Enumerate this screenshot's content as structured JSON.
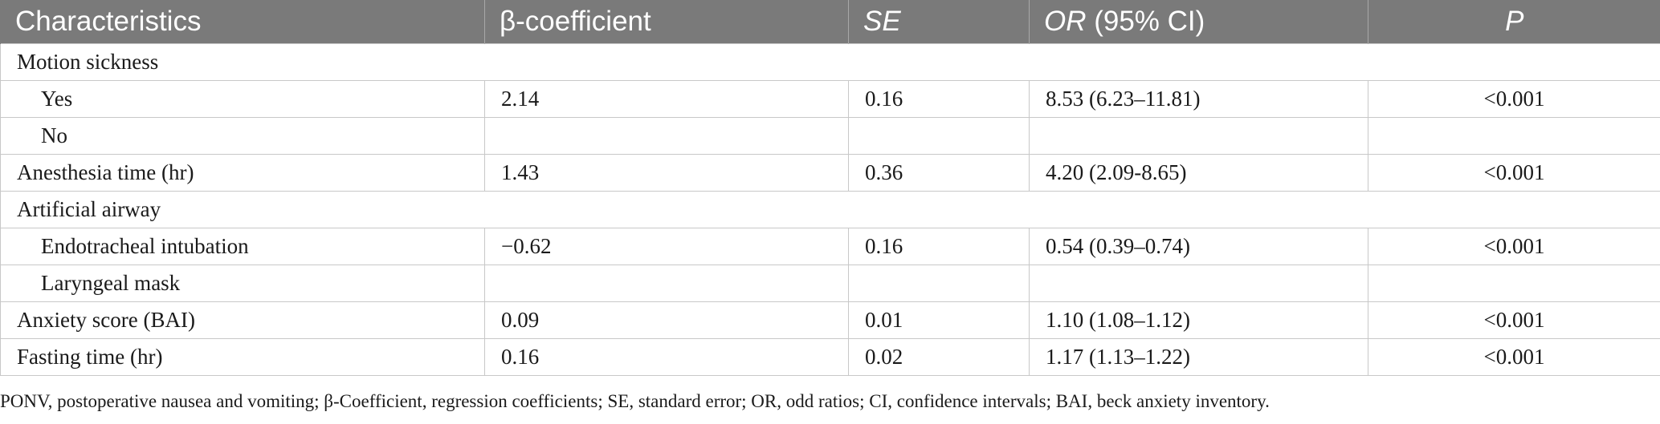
{
  "table": {
    "headers": {
      "characteristics": "Characteristics",
      "beta": "β-coefficient",
      "se": "SE",
      "or_prefix": "OR",
      "or_suffix": " (95% CI)",
      "p": "P"
    },
    "rows": [
      {
        "type": "group",
        "label": "Motion sickness"
      },
      {
        "type": "sub",
        "label": "Yes",
        "beta": "2.14",
        "se": "0.16",
        "or": "8.53 (6.23–11.81)",
        "p": "<0.001"
      },
      {
        "type": "sub",
        "label": "No",
        "beta": "",
        "se": "",
        "or": "",
        "p": ""
      },
      {
        "type": "main",
        "label": "Anesthesia time (hr)",
        "beta": "1.43",
        "se": "0.36",
        "or": "4.20 (2.09-8.65)",
        "p": "<0.001"
      },
      {
        "type": "group",
        "label": "Artificial airway"
      },
      {
        "type": "sub",
        "label": "Endotracheal intubation",
        "beta": "−0.62",
        "se": "0.16",
        "or": "0.54 (0.39–0.74)",
        "p": "<0.001"
      },
      {
        "type": "sub",
        "label": "Laryngeal mask",
        "beta": "",
        "se": "",
        "or": "",
        "p": ""
      },
      {
        "type": "main",
        "label": "Anxiety score (BAI)",
        "beta": "0.09",
        "se": "0.01",
        "or": "1.10 (1.08–1.12)",
        "p": "<0.001"
      },
      {
        "type": "main",
        "label": "Fasting time (hr)",
        "beta": "0.16",
        "se": "0.02",
        "or": "1.17 (1.13–1.22)",
        "p": "<0.001"
      }
    ],
    "footnote": "PONV, postoperative nausea and vomiting; β-Coefficient, regression coefficients; SE, standard error; OR, odd ratios; CI, confidence intervals; BAI, beck anxiety inventory."
  },
  "colors": {
    "header_background": "#7a7a7a",
    "header_text": "#ffffff",
    "grid_lines": "#c8c8c8"
  }
}
